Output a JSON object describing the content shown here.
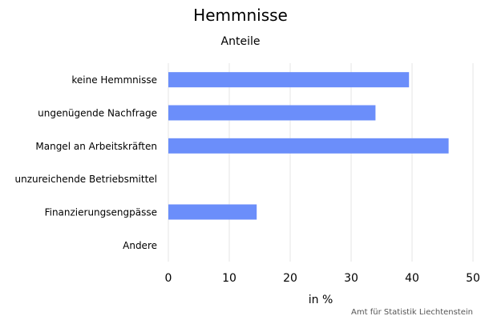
{
  "chart_data": {
    "type": "bar",
    "orientation": "horizontal",
    "title": "Hemmnisse",
    "subtitle": "Anteile",
    "xlabel": "in %",
    "ylabel": "",
    "categories": [
      "keine Hemmnisse",
      "ungenügende Nachfrage",
      "Mangel an Arbeitskräften",
      "unzureichende Betriebsmittel",
      "Finanzierungsengpässe",
      "Andere"
    ],
    "values": [
      39.5,
      34,
      46,
      0,
      14.5,
      0
    ],
    "xlim": [
      0,
      50
    ],
    "xticks": [
      0,
      10,
      20,
      30,
      40,
      50
    ],
    "grid": true,
    "bar_color": "#6b8efa",
    "credit": "Amt für Statistik Liechtenstein"
  }
}
